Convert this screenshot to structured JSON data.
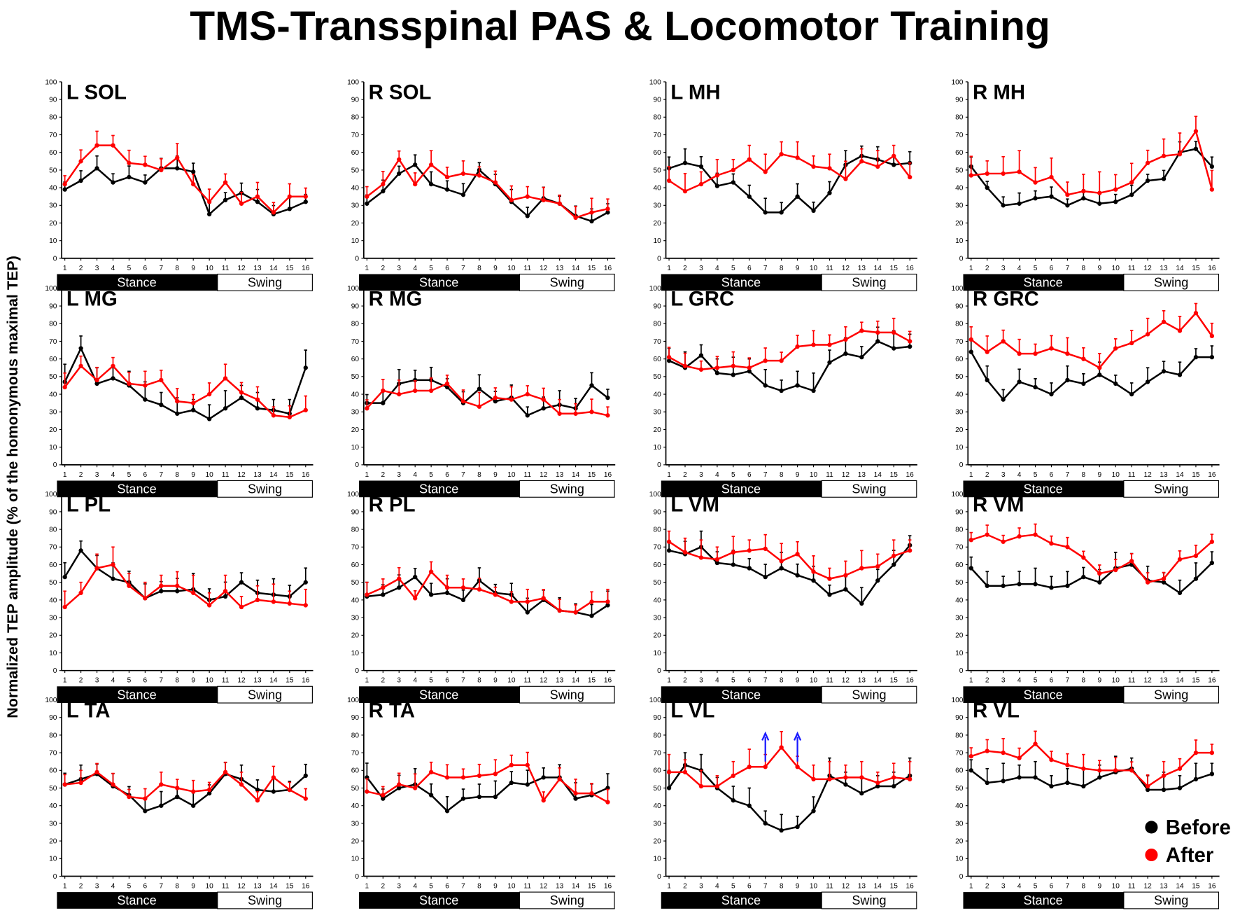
{
  "title": "TMS-Transspinal PAS & Locomotor Training",
  "ylabel": "Normalized TEP amplitude (% of the homonymous maximal TEP)",
  "legend": [
    {
      "label": "Before",
      "color": "#000000"
    },
    {
      "label": "After",
      "color": "#ff0000"
    }
  ],
  "phases": {
    "stance": "Stance",
    "swing": "Swing"
  },
  "chart_data": {
    "type": "line",
    "x": [
      1,
      2,
      3,
      4,
      5,
      6,
      7,
      8,
      9,
      10,
      11,
      12,
      13,
      14,
      15,
      16
    ],
    "ylim": [
      0,
      100
    ],
    "yticks": [
      0,
      10,
      20,
      30,
      40,
      50,
      60,
      70,
      80,
      90,
      100
    ],
    "xticks": [
      "1",
      "2",
      "3",
      "4",
      "5",
      "6",
      "7",
      "8",
      "9",
      "10",
      "11",
      "12",
      "13",
      "14",
      "15",
      "16"
    ],
    "panels": [
      {
        "title": "L SOL",
        "before": [
          39,
          44,
          51,
          43,
          46,
          43,
          51,
          51,
          49,
          25,
          33,
          37,
          32,
          25,
          28,
          32
        ],
        "after": [
          42,
          55,
          64,
          64,
          54,
          53,
          50,
          57,
          42,
          32,
          43,
          31,
          35,
          26,
          35,
          35
        ],
        "err_before": 7,
        "err_after": 8
      },
      {
        "title": "R SOL",
        "before": [
          31,
          38,
          48,
          53,
          42,
          39,
          36,
          50,
          42,
          32,
          24,
          34,
          31,
          24,
          21,
          26
        ],
        "after": [
          35,
          42,
          56,
          42,
          53,
          46,
          48,
          47,
          43,
          33,
          35,
          33,
          31,
          23,
          26,
          28
        ],
        "err_before": 7,
        "err_after": 8
      },
      {
        "title": "L MH",
        "before": [
          51,
          54,
          52,
          41,
          43,
          35,
          26,
          26,
          35,
          27,
          37,
          53,
          58,
          56,
          53,
          54
        ],
        "after": [
          44,
          38,
          42,
          47,
          50,
          56,
          49,
          59,
          57,
          52,
          51,
          45,
          55,
          52,
          58,
          46
        ],
        "err_before": 8,
        "err_after": 10
      },
      {
        "title": "R MH",
        "before": [
          52,
          40,
          30,
          31,
          34,
          35,
          30,
          34,
          31,
          32,
          36,
          44,
          45,
          60,
          62,
          52
        ],
        "after": [
          47,
          48,
          48,
          49,
          43,
          46,
          36,
          38,
          37,
          39,
          43,
          54,
          58,
          59,
          72,
          39
        ],
        "err_before": 6,
        "err_after": 12
      },
      {
        "title": "L MG",
        "before": [
          47,
          66,
          46,
          49,
          45,
          37,
          34,
          29,
          31,
          26,
          32,
          38,
          32,
          31,
          29,
          55
        ],
        "after": [
          44,
          56,
          48,
          56,
          46,
          45,
          48,
          36,
          35,
          40,
          49,
          41,
          37,
          28,
          27,
          31
        ],
        "err_before": 10,
        "err_after": 8
      },
      {
        "title": "R MG",
        "before": [
          35,
          35,
          46,
          48,
          48,
          44,
          35,
          43,
          36,
          38,
          28,
          32,
          34,
          32,
          45,
          38
        ],
        "after": [
          32,
          42,
          40,
          42,
          42,
          46,
          36,
          33,
          38,
          37,
          40,
          37,
          29,
          29,
          30,
          28
        ],
        "err_before": 8,
        "err_after": 8
      },
      {
        "title": "L GRC",
        "before": [
          59,
          55,
          62,
          52,
          51,
          53,
          45,
          42,
          45,
          42,
          58,
          63,
          61,
          70,
          66,
          67
        ],
        "after": [
          61,
          56,
          54,
          55,
          56,
          55,
          59,
          59,
          67,
          68,
          68,
          71,
          76,
          75,
          75,
          70
        ],
        "err_before": 10,
        "err_after": 8
      },
      {
        "title": "R GRC",
        "before": [
          64,
          48,
          37,
          47,
          44,
          40,
          48,
          46,
          51,
          46,
          40,
          47,
          53,
          51,
          61,
          61
        ],
        "after": [
          71,
          64,
          70,
          63,
          63,
          66,
          63,
          60,
          55,
          66,
          69,
          74,
          81,
          76,
          86,
          73
        ],
        "err_before": 8,
        "err_after": 9
      },
      {
        "title": "L PL",
        "before": [
          53,
          68,
          58,
          52,
          50,
          41,
          45,
          45,
          46,
          40,
          42,
          50,
          44,
          43,
          42,
          50
        ],
        "after": [
          36,
          44,
          58,
          60,
          48,
          41,
          48,
          48,
          44,
          37,
          45,
          36,
          40,
          39,
          38,
          37
        ],
        "err_before": 9,
        "err_after": 10
      },
      {
        "title": "R PL",
        "before": [
          42,
          43,
          47,
          53,
          43,
          44,
          40,
          51,
          44,
          43,
          33,
          40,
          34,
          33,
          31,
          37
        ],
        "after": [
          43,
          47,
          52,
          41,
          56,
          47,
          47,
          46,
          43,
          39,
          39,
          41,
          34,
          33,
          39,
          39
        ],
        "err_before": 8,
        "err_after": 7
      },
      {
        "title": "L VM",
        "before": [
          68,
          66,
          70,
          61,
          60,
          58,
          53,
          58,
          54,
          51,
          43,
          46,
          38,
          51,
          60,
          71
        ],
        "after": [
          73,
          67,
          64,
          63,
          67,
          68,
          69,
          62,
          66,
          56,
          52,
          54,
          58,
          59,
          65,
          68
        ],
        "err_before": 9,
        "err_after": 10
      },
      {
        "title": "R VM",
        "before": [
          58,
          48,
          48,
          49,
          49,
          47,
          48,
          53,
          50,
          58,
          60,
          51,
          50,
          44,
          52,
          61
        ],
        "after": [
          74,
          77,
          73,
          76,
          77,
          72,
          70,
          64,
          55,
          57,
          62,
          50,
          52,
          63,
          65,
          73
        ],
        "err_before": 9,
        "err_after": 6
      },
      {
        "title": "L TA",
        "before": [
          52,
          55,
          58,
          51,
          46,
          37,
          40,
          45,
          40,
          47,
          58,
          55,
          49,
          48,
          49,
          57
        ],
        "after": [
          52,
          53,
          59,
          52,
          45,
          44,
          52,
          50,
          48,
          49,
          59,
          52,
          43,
          56,
          49,
          44
        ],
        "err_before": 8,
        "err_after": 7
      },
      {
        "title": "R TA",
        "before": [
          56,
          44,
          50,
          52,
          46,
          37,
          44,
          45,
          45,
          53,
          52,
          56,
          56,
          44,
          46,
          50
        ],
        "after": [
          48,
          46,
          52,
          50,
          59,
          56,
          56,
          57,
          58,
          63,
          63,
          43,
          55,
          47,
          47,
          42
        ],
        "err_before": 9,
        "err_after": 8
      },
      {
        "title": "L VL",
        "before": [
          50,
          63,
          60,
          50,
          43,
          40,
          30,
          26,
          28,
          37,
          57,
          52,
          47,
          51,
          51,
          57
        ],
        "after": [
          59,
          59,
          51,
          51,
          57,
          62,
          62,
          73,
          62,
          55,
          55,
          56,
          56,
          53,
          56,
          55
        ],
        "err_before": 10,
        "err_after": 10,
        "arrows_at": [
          7,
          9
        ]
      },
      {
        "title": "R VL",
        "before": [
          60,
          53,
          54,
          56,
          56,
          51,
          53,
          51,
          56,
          59,
          61,
          49,
          49,
          50,
          55,
          58
        ],
        "after": [
          68,
          71,
          70,
          67,
          75,
          66,
          63,
          61,
          60,
          60,
          60,
          51,
          57,
          61,
          70,
          70
        ],
        "err_before": 10,
        "err_after": 8
      }
    ]
  }
}
